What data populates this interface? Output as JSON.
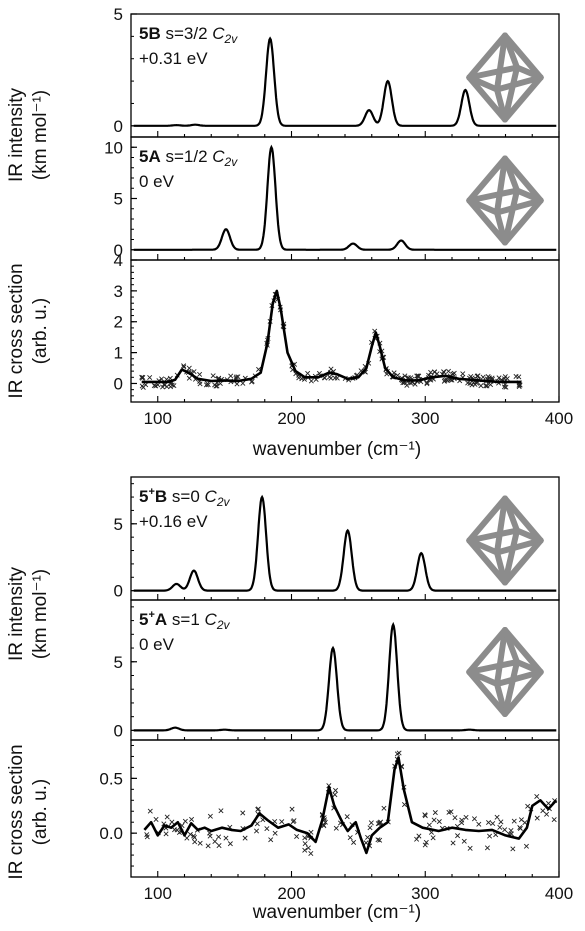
{
  "figure": {
    "top_group": {
      "ylabel_line1": "IR intensity",
      "ylabel_line2": "(km mol⁻¹)",
      "ylabel_exp_line1": "IR cross section",
      "ylabel_exp_line2": "(arb. u.)",
      "xlabel": "wavenumber (cm⁻¹)"
    },
    "bottom_group": {
      "ylabel_line1": "IR intensity",
      "ylabel_line2": "(km mol⁻¹)",
      "ylabel_exp_line1": "IR cross section",
      "ylabel_exp_line2": "(arb. u.)",
      "xlabel": "wavenumber (cm⁻¹)"
    }
  },
  "chart_data": [
    {
      "id": "panel-5B",
      "type": "line",
      "label_bold": "5B",
      "label_rest": "s=3/2 C2v",
      "energy": "+0.31 eV",
      "xlim": [
        80,
        400
      ],
      "ylim": [
        -0.5,
        5
      ],
      "yticks": [
        0,
        5
      ],
      "peaks": [
        {
          "x": 114,
          "y": 0.03
        },
        {
          "x": 128,
          "y": 0.05
        },
        {
          "x": 184,
          "y": 3.9
        },
        {
          "x": 258,
          "y": 0.7
        },
        {
          "x": 272,
          "y": 2.0
        },
        {
          "x": 330,
          "y": 1.6
        }
      ],
      "peak_width": 3.0,
      "line_color": "#000000"
    },
    {
      "id": "panel-5A",
      "type": "line",
      "label_bold": "5A",
      "label_rest": "s=1/2 C2v",
      "energy": "0 eV",
      "xlim": [
        80,
        400
      ],
      "ylim": [
        -1,
        11
      ],
      "yticks": [
        0,
        5,
        10
      ],
      "peaks": [
        {
          "x": 151,
          "y": 2.0
        },
        {
          "x": 185,
          "y": 10.0
        },
        {
          "x": 246,
          "y": 0.6
        },
        {
          "x": 282,
          "y": 0.9
        }
      ],
      "peak_width": 3.0,
      "line_color": "#000000"
    },
    {
      "id": "panel-5-exp",
      "type": "scatter",
      "xlim": [
        80,
        400
      ],
      "ylim": [
        -0.6,
        4
      ],
      "yticks": [
        0,
        1,
        2,
        3,
        4
      ],
      "xticks": [
        100,
        200,
        300,
        400
      ],
      "fit_points": [
        [
          88,
          0.05
        ],
        [
          100,
          0.05
        ],
        [
          108,
          0.05
        ],
        [
          113,
          0.12
        ],
        [
          118,
          0.45
        ],
        [
          123,
          0.35
        ],
        [
          130,
          0.15
        ],
        [
          140,
          0.08
        ],
        [
          150,
          0.1
        ],
        [
          160,
          0.08
        ],
        [
          170,
          0.15
        ],
        [
          177,
          0.35
        ],
        [
          182,
          1.3
        ],
        [
          186,
          2.6
        ],
        [
          189,
          3.0
        ],
        [
          192,
          2.4
        ],
        [
          197,
          1.0
        ],
        [
          203,
          0.4
        ],
        [
          210,
          0.2
        ],
        [
          220,
          0.2
        ],
        [
          228,
          0.35
        ],
        [
          234,
          0.3
        ],
        [
          242,
          0.15
        ],
        [
          250,
          0.2
        ],
        [
          256,
          0.5
        ],
        [
          260,
          1.2
        ],
        [
          263,
          1.65
        ],
        [
          266,
          1.2
        ],
        [
          270,
          0.5
        ],
        [
          276,
          0.2
        ],
        [
          285,
          0.1
        ],
        [
          295,
          0.1
        ],
        [
          305,
          0.2
        ],
        [
          315,
          0.25
        ],
        [
          325,
          0.15
        ],
        [
          340,
          0.1
        ],
        [
          355,
          0.05
        ],
        [
          372,
          0.05
        ]
      ],
      "marker": "x",
      "marker_count": 240,
      "scatter_spread": 0.18,
      "line_color": "#000000"
    },
    {
      "id": "panel-5pB",
      "type": "line",
      "label_bold": "5+B",
      "label_rest": "s=0 C2v",
      "energy": "+0.16 eV",
      "xlim": [
        80,
        400
      ],
      "ylim": [
        -0.7,
        8.5
      ],
      "yticks": [
        0,
        5
      ],
      "peaks": [
        {
          "x": 114,
          "y": 0.5
        },
        {
          "x": 127,
          "y": 1.5
        },
        {
          "x": 178,
          "y": 7.0
        },
        {
          "x": 242,
          "y": 4.5
        },
        {
          "x": 297,
          "y": 2.8
        }
      ],
      "peak_width": 3.0,
      "line_color": "#000000"
    },
    {
      "id": "panel-5pA",
      "type": "line",
      "label_bold": "5+A",
      "label_rest": "s=1 C2v",
      "energy": "0 eV",
      "xlim": [
        80,
        400
      ],
      "ylim": [
        -0.7,
        9.5
      ],
      "yticks": [
        0,
        5
      ],
      "peaks": [
        {
          "x": 113,
          "y": 0.2
        },
        {
          "x": 150,
          "y": 0.05
        },
        {
          "x": 231,
          "y": 6.0
        },
        {
          "x": 276,
          "y": 7.7
        },
        {
          "x": 333,
          "y": 0.05
        }
      ],
      "peak_width": 3.0,
      "line_color": "#000000"
    },
    {
      "id": "panel-5p-exp",
      "type": "scatter",
      "xlim": [
        80,
        400
      ],
      "ylim": [
        -0.4,
        0.85
      ],
      "yticks": [
        0.0,
        0.5
      ],
      "xticks": [
        100,
        200,
        300,
        400
      ],
      "fit_points": [
        [
          90,
          0.03
        ],
        [
          95,
          0.1
        ],
        [
          100,
          -0.02
        ],
        [
          105,
          0.07
        ],
        [
          110,
          0.05
        ],
        [
          115,
          0.1
        ],
        [
          120,
          -0.02
        ],
        [
          125,
          0.09
        ],
        [
          130,
          0.03
        ],
        [
          135,
          0.05
        ],
        [
          140,
          0.02
        ],
        [
          148,
          0.05
        ],
        [
          155,
          0.03
        ],
        [
          162,
          0.02
        ],
        [
          170,
          0.07
        ],
        [
          176,
          0.18
        ],
        [
          182,
          0.12
        ],
        [
          190,
          0.05
        ],
        [
          198,
          0.08
        ],
        [
          204,
          0.03
        ],
        [
          212,
          0.0
        ],
        [
          218,
          -0.08
        ],
        [
          223,
          0.12
        ],
        [
          228,
          0.42
        ],
        [
          232,
          0.25
        ],
        [
          238,
          0.1
        ],
        [
          242,
          0.02
        ],
        [
          248,
          0.1
        ],
        [
          252,
          -0.05
        ],
        [
          256,
          -0.18
        ],
        [
          260,
          -0.02
        ],
        [
          266,
          0.05
        ],
        [
          272,
          0.1
        ],
        [
          277,
          0.58
        ],
        [
          280,
          0.69
        ],
        [
          284,
          0.4
        ],
        [
          290,
          0.1
        ],
        [
          298,
          0.05
        ],
        [
          310,
          0.02
        ],
        [
          320,
          0.05
        ],
        [
          330,
          0.03
        ],
        [
          340,
          0.02
        ],
        [
          350,
          0.03
        ],
        [
          360,
          -0.02
        ],
        [
          370,
          -0.05
        ],
        [
          376,
          0.05
        ],
        [
          380,
          0.25
        ],
        [
          386,
          0.3
        ],
        [
          392,
          0.22
        ],
        [
          398,
          0.3
        ]
      ],
      "marker": "x",
      "marker_count": 160,
      "scatter_spread": 0.12,
      "line_color": "#000000"
    }
  ]
}
